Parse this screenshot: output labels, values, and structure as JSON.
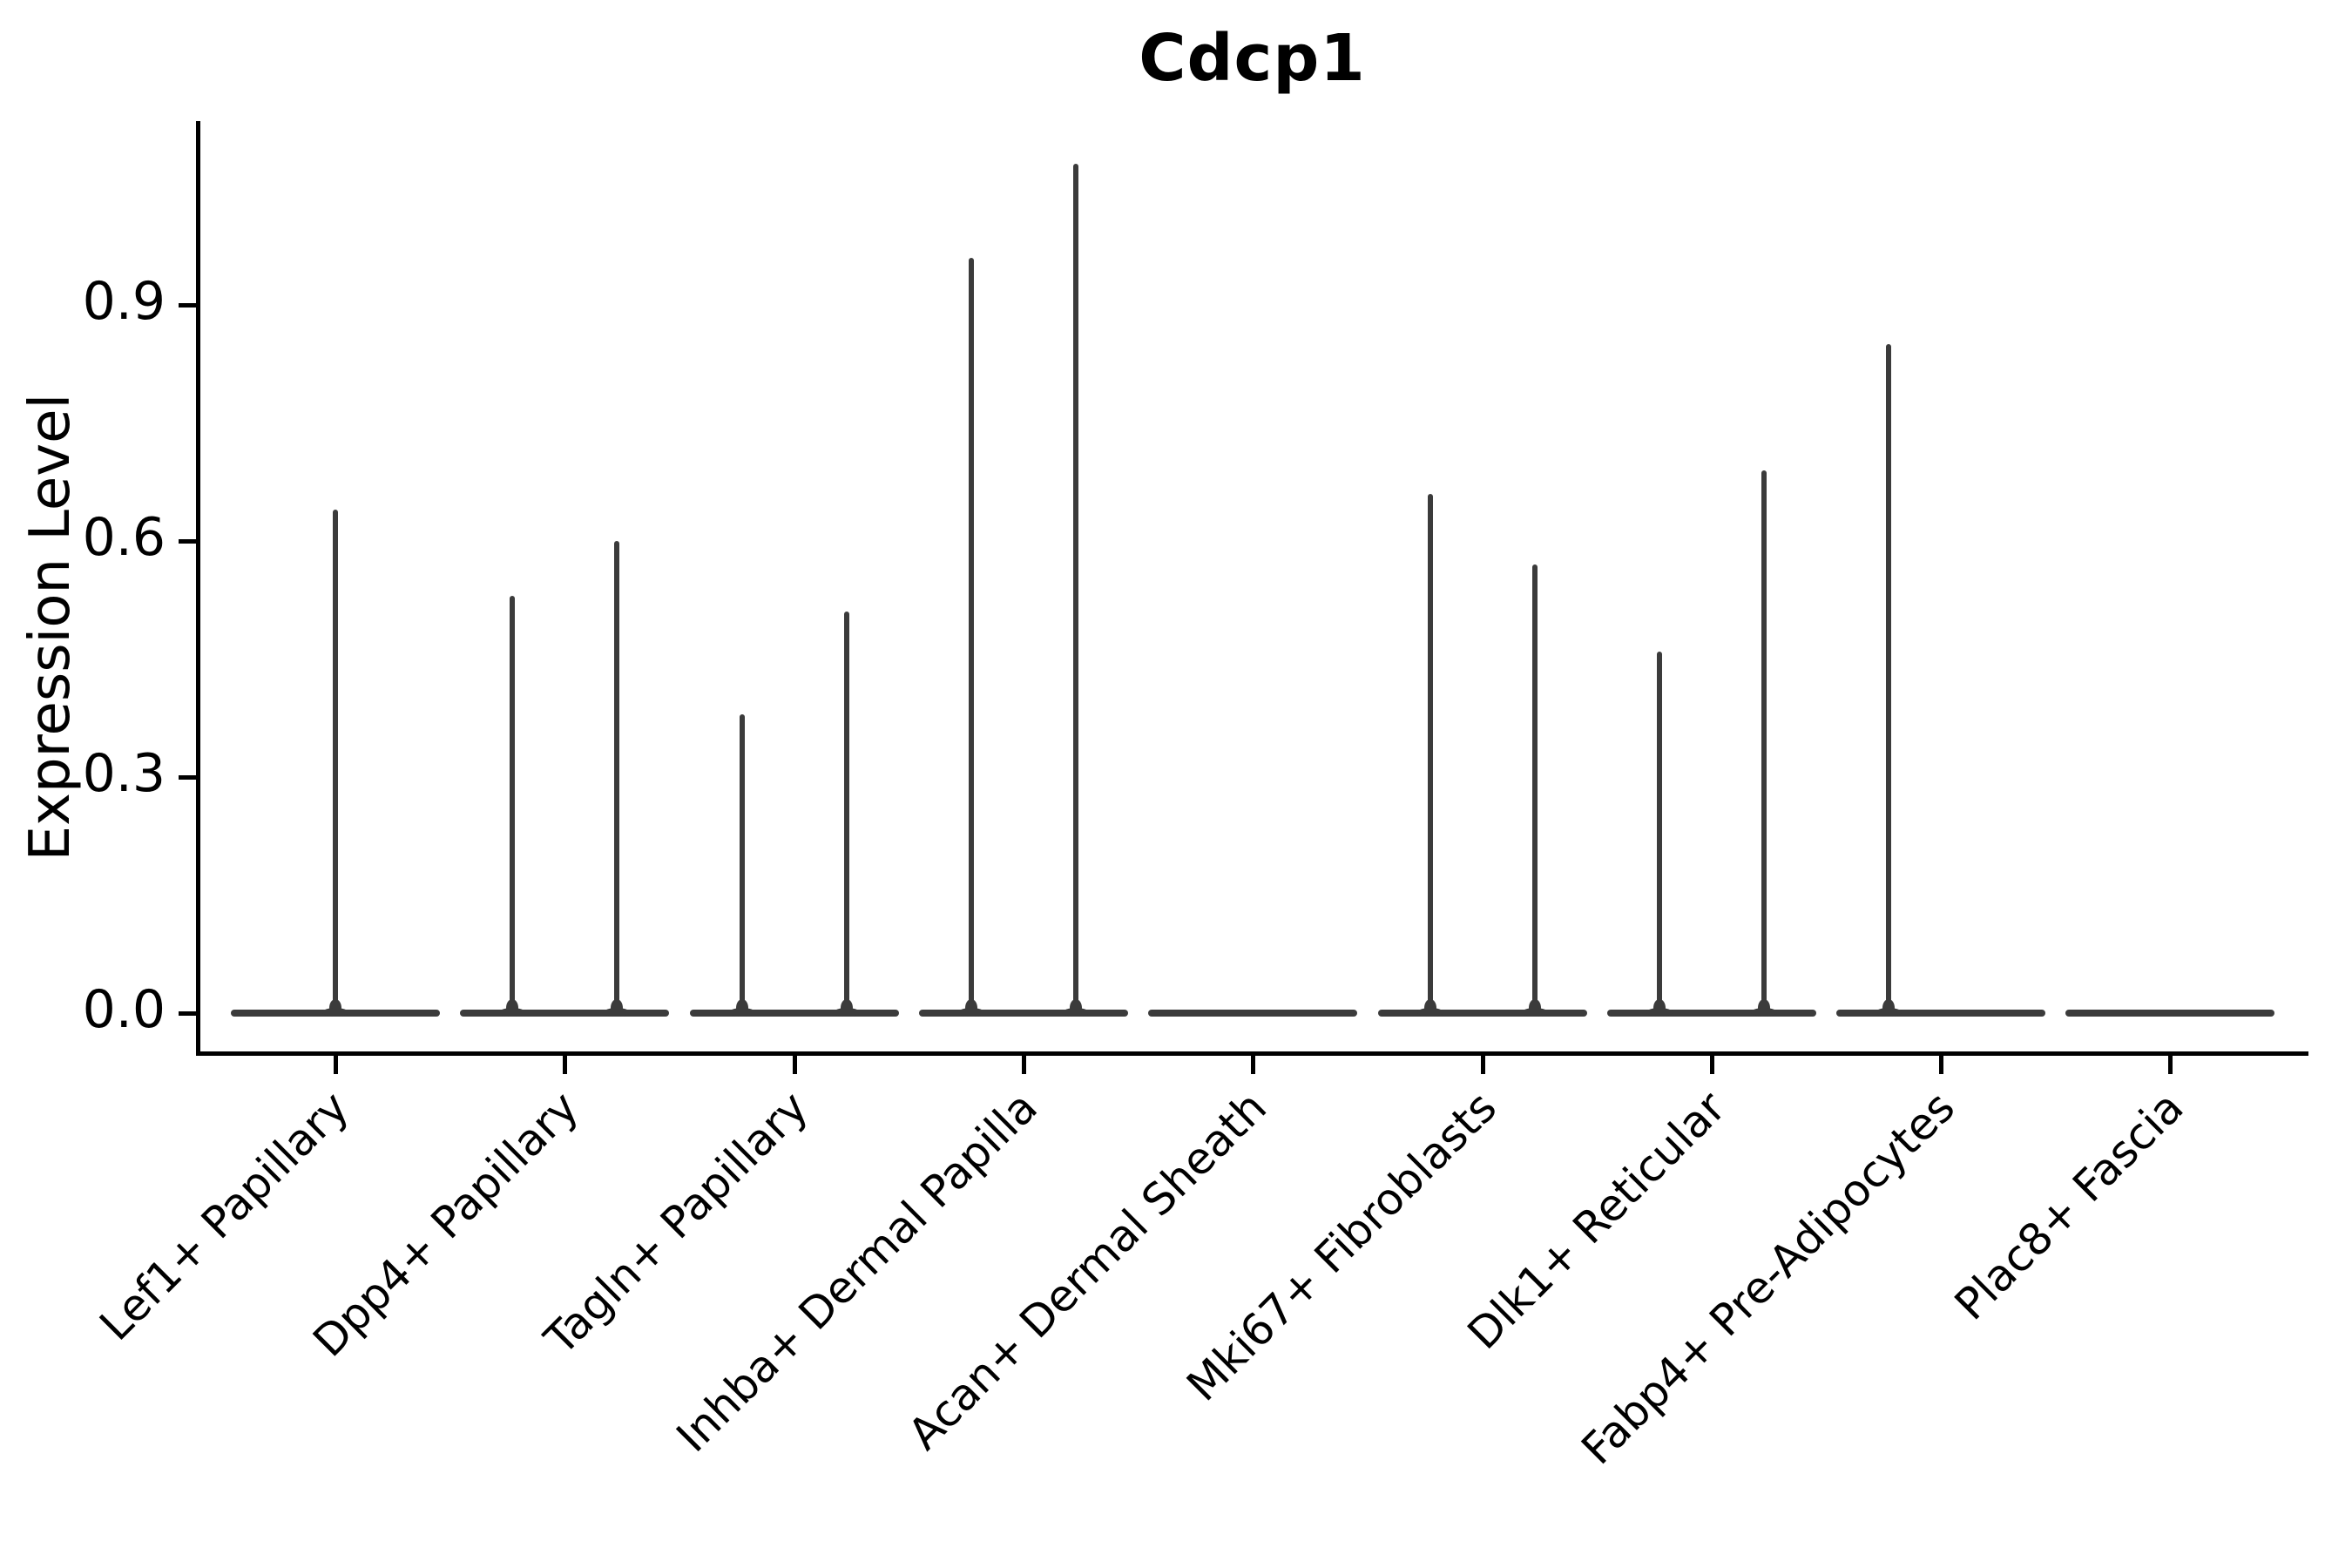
{
  "chart_data": {
    "type": "violin",
    "title": "Cdcp1",
    "ylabel": "Expression Level",
    "xlabel": "",
    "ylim": [
      0,
      1.13
    ],
    "yticks": [
      0.0,
      0.3,
      0.6,
      0.9
    ],
    "y_tick_labels": [
      "0.0",
      "0.3",
      "0.6",
      "0.9"
    ],
    "grid": false,
    "legend": "none",
    "background_color": "#ffffff",
    "axis_color": "#000000",
    "violin_color": "#3b3b3b",
    "categories": [
      "Lef1+ Papillary",
      "Dpp4+ Papillary",
      "Tagln+ Papillary",
      "Inhba+ Dermal Papilla",
      "Acan+ Dermal Sheath",
      "Mki67+ Fibroblasts",
      "Dlk1+ Reticular",
      "Fabp4+ Pre-Adipocytes",
      "Plac8+ Fascia"
    ],
    "baseline_value": 0.0,
    "violins": [
      {
        "category": "Lef1+ Papillary",
        "spikes": [
          {
            "offset": 0.0,
            "max_expression": 0.64
          }
        ]
      },
      {
        "category": "Dpp4+ Papillary",
        "spikes": [
          {
            "offset": -0.227,
            "max_expression": 0.53
          },
          {
            "offset": 0.227,
            "max_expression": 0.6
          }
        ]
      },
      {
        "category": "Tagln+ Papillary",
        "spikes": [
          {
            "offset": -0.227,
            "max_expression": 0.38
          },
          {
            "offset": 0.227,
            "max_expression": 0.51
          }
        ]
      },
      {
        "category": "Inhba+ Dermal Papilla",
        "spikes": [
          {
            "offset": -0.227,
            "max_expression": 0.96
          },
          {
            "offset": 0.227,
            "max_expression": 1.08
          }
        ]
      },
      {
        "category": "Acan+ Dermal Sheath",
        "spikes": []
      },
      {
        "category": "Mki67+ Fibroblasts",
        "spikes": [
          {
            "offset": -0.227,
            "max_expression": 0.66
          },
          {
            "offset": 0.227,
            "max_expression": 0.57
          }
        ]
      },
      {
        "category": "Dlk1+ Reticular",
        "spikes": [
          {
            "offset": -0.227,
            "max_expression": 0.46
          },
          {
            "offset": 0.227,
            "max_expression": 0.69
          }
        ]
      },
      {
        "category": "Fabp4+ Pre-Adipocytes",
        "spikes": [
          {
            "offset": -0.227,
            "max_expression": 0.85
          }
        ]
      },
      {
        "category": "Plac8+ Fascia",
        "spikes": []
      }
    ]
  }
}
